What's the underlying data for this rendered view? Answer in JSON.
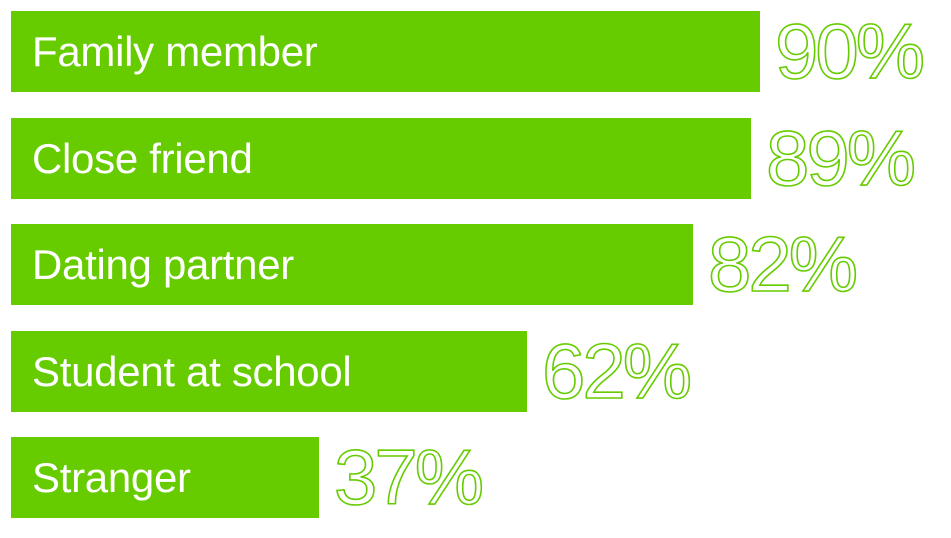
{
  "colors": {
    "bar": "#66cc00",
    "bar_text": "#ffffff",
    "value_text": "#66cc00"
  },
  "chart_data": {
    "type": "bar",
    "orientation": "horizontal",
    "categories": [
      "Family member",
      "Close friend",
      "Dating partner",
      "Student at school",
      "Stranger"
    ],
    "values": [
      90,
      89,
      82,
      62,
      37
    ],
    "value_labels": [
      "90%",
      "89%",
      "82%",
      "62%",
      "37%"
    ],
    "unit": "%",
    "xlim": [
      0,
      100
    ],
    "grid": false,
    "legend": "none"
  }
}
